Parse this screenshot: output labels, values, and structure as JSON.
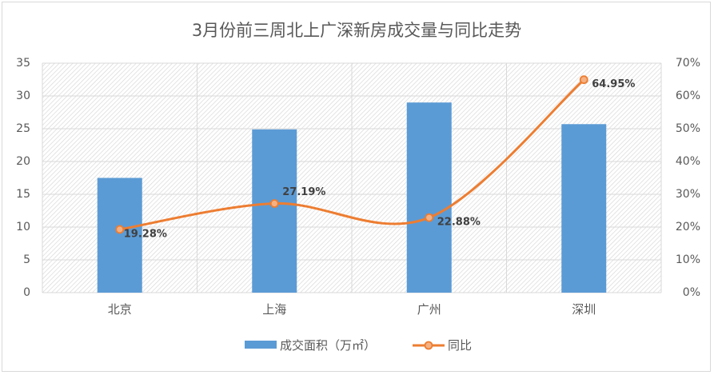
{
  "chart_data": {
    "type": "bar",
    "title": "3月份前三周北上广深新房成交量与同比走势",
    "categories": [
      "北京",
      "上海",
      "广州",
      "深圳"
    ],
    "series": [
      {
        "name": "成交面积（万㎡）",
        "type": "bar",
        "axis": "left",
        "values": [
          17.5,
          24.9,
          29.0,
          25.7
        ],
        "color": "#5b9bd5"
      },
      {
        "name": "同比",
        "type": "line",
        "axis": "right",
        "values": [
          19.28,
          27.19,
          22.88,
          64.95
        ],
        "labels": [
          "19.28%",
          "27.19%",
          "22.88%",
          "64.95%"
        ],
        "color": "#ed7d31",
        "marker_fill": "#f4b183"
      }
    ],
    "y_left": {
      "min": 0,
      "max": 35,
      "step": 5,
      "ticks": [
        "0",
        "5",
        "10",
        "15",
        "20",
        "25",
        "30",
        "35"
      ]
    },
    "y_right": {
      "min": 0,
      "max": 70,
      "step": 10,
      "ticks": [
        "0%",
        "10%",
        "20%",
        "30%",
        "40%",
        "50%",
        "60%",
        "70%"
      ]
    },
    "grid": true,
    "legend_position": "bottom"
  }
}
